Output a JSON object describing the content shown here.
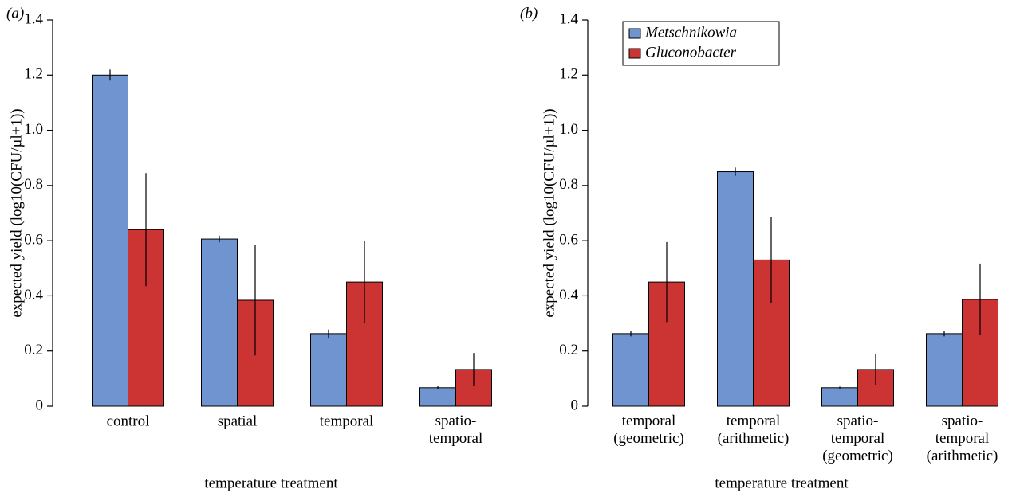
{
  "chart_data": [
    {
      "type": "bar",
      "label": "(a)",
      "ylabel": "expected yield (log10(CFU/µl+1))",
      "xlabel": "temperature treatment",
      "categories": [
        "control",
        "spatial",
        "temporal",
        "spatio-\ntemporal"
      ],
      "series": [
        {
          "color": "#7094cf",
          "values": [
            1.2,
            0.606,
            0.263,
            0.067
          ],
          "errors": [
            0.02,
            0.012,
            0.015,
            0.006
          ]
        },
        {
          "color": "#cc3333",
          "values": [
            0.64,
            0.384,
            0.45,
            0.133
          ],
          "errors": [
            0.205,
            0.2,
            0.15,
            0.06
          ]
        }
      ],
      "ylim": [
        0,
        1.4
      ],
      "yticks": [
        0,
        0.2,
        0.4,
        0.6,
        0.8,
        {
          "value": 1,
          "label": "1.0"
        },
        1.2,
        1.4
      ]
    },
    {
      "type": "bar",
      "label": "(b)",
      "ylabel": "expected yield (log10(CFU/µl+1))",
      "xlabel": "temperature treatment",
      "categories": [
        "temporal\n(geometric)",
        "temporal\n(arithmetic)",
        "spatio-\ntemporal\n(geometric)",
        "spatio-\ntemporal\n(arithmetic)"
      ],
      "series": [
        {
          "name": "Metschnikowia",
          "color": "#7094cf",
          "values": [
            0.263,
            0.85,
            0.067,
            0.263
          ],
          "errors": [
            0.01,
            0.015,
            0.004,
            0.01
          ]
        },
        {
          "name": "Gluconobacter",
          "color": "#cc3333",
          "values": [
            0.45,
            0.53,
            0.133,
            0.387
          ],
          "errors": [
            0.145,
            0.155,
            0.055,
            0.13
          ]
        }
      ],
      "ylim": [
        0,
        1.4
      ],
      "yticks": [
        0,
        0.2,
        0.4,
        0.6,
        0.8,
        {
          "value": 1,
          "label": "1.0"
        },
        1.2,
        1.4
      ],
      "legend": "upper left"
    }
  ]
}
